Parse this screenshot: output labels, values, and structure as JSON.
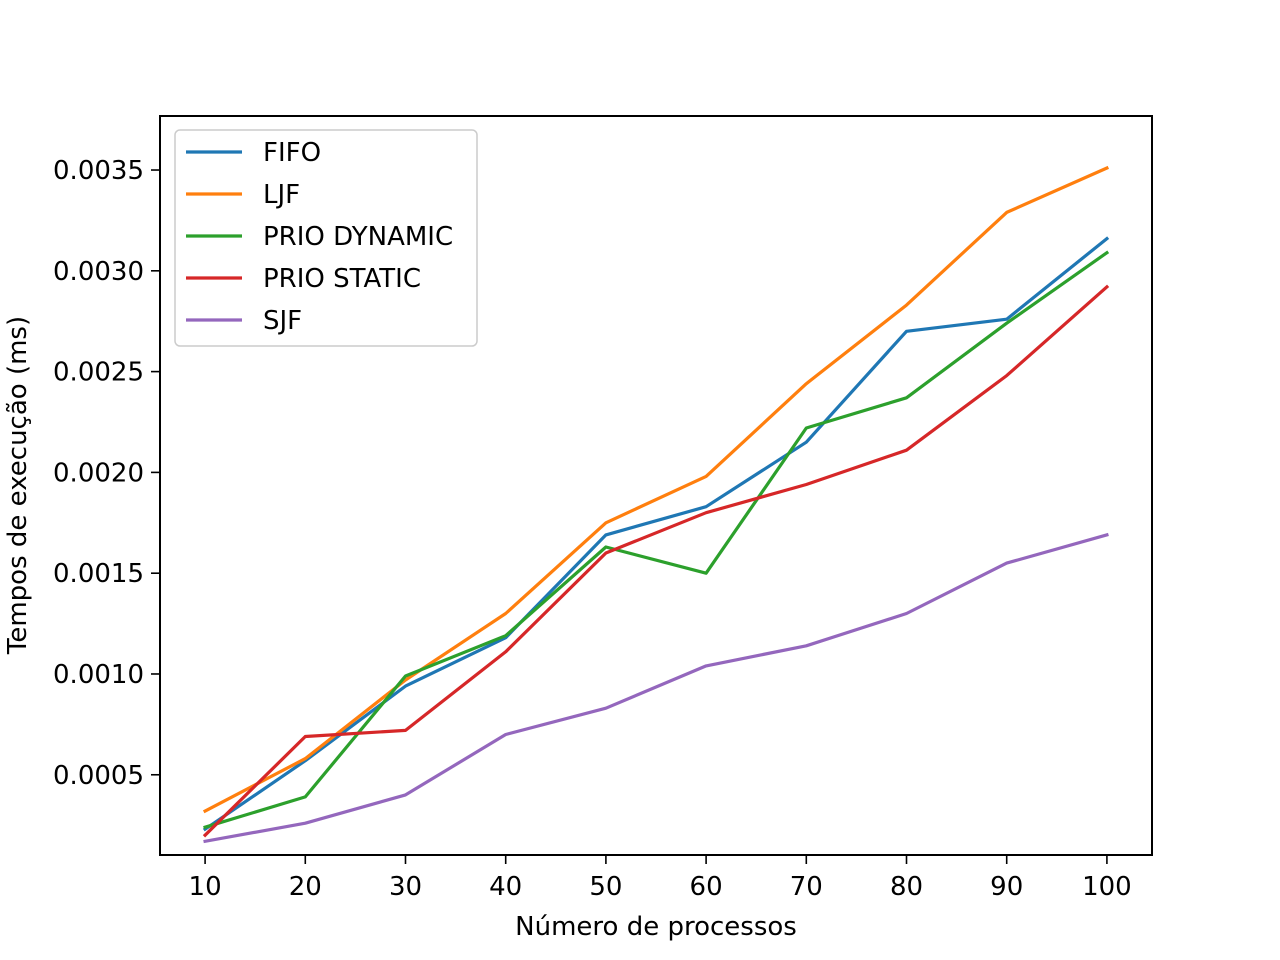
{
  "chart_data": {
    "type": "line",
    "title": "",
    "xlabel": "Número de processos",
    "ylabel": "Tempos de execução (ms)",
    "x": [
      10,
      20,
      30,
      40,
      50,
      60,
      70,
      80,
      90,
      100
    ],
    "x_tick_labels": [
      "10",
      "20",
      "30",
      "40",
      "50",
      "60",
      "70",
      "80",
      "90",
      "100"
    ],
    "y_ticks": [
      0.0005,
      0.001,
      0.0015,
      0.002,
      0.0025,
      0.003,
      0.0035
    ],
    "y_tick_labels": [
      "0.0005",
      "0.0010",
      "0.0015",
      "0.0020",
      "0.0025",
      "0.0030",
      "0.0035"
    ],
    "xlim": [
      5.5,
      104.5
    ],
    "ylim": [
      0.000102,
      0.003768
    ],
    "grid": false,
    "legend_position": "upper-left",
    "series": [
      {
        "name": "FIFO",
        "color": "#1f77b4",
        "values": [
          0.00023,
          0.00057,
          0.00094,
          0.00118,
          0.00169,
          0.00183,
          0.00215,
          0.0027,
          0.00276,
          0.00316
        ]
      },
      {
        "name": "LJF",
        "color": "#ff7f0e",
        "values": [
          0.00032,
          0.00058,
          0.00097,
          0.0013,
          0.00175,
          0.00198,
          0.00244,
          0.00283,
          0.00329,
          0.00351
        ]
      },
      {
        "name": "PRIO DYNAMIC",
        "color": "#2ca02c",
        "values": [
          0.00024,
          0.00039,
          0.00099,
          0.00119,
          0.00163,
          0.0015,
          0.00222,
          0.00237,
          0.00274,
          0.00309
        ]
      },
      {
        "name": "PRIO STATIC",
        "color": "#d62728",
        "values": [
          0.0002,
          0.00069,
          0.00072,
          0.00111,
          0.0016,
          0.0018,
          0.00194,
          0.00211,
          0.00248,
          0.00292
        ]
      },
      {
        "name": "SJF",
        "color": "#9467bd",
        "values": [
          0.00017,
          0.00026,
          0.0004,
          0.0007,
          0.00083,
          0.00104,
          0.00114,
          0.0013,
          0.00155,
          0.00169
        ]
      }
    ]
  }
}
